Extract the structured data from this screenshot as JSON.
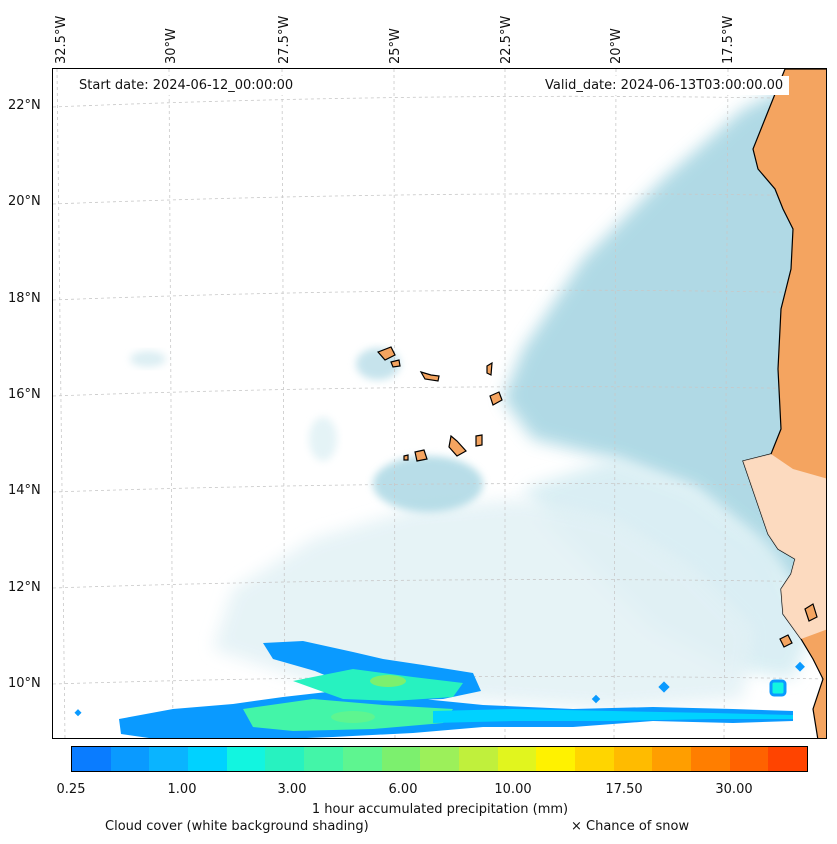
{
  "header": {
    "start_date": "Start date: 2024-06-12_00:00:00",
    "valid_date": "Valid_date: 2024-06-13T03:00:00.00"
  },
  "axes": {
    "longitude_labels": [
      "32.5°W",
      "30°W",
      "27.5°W",
      "25°W",
      "22.5°W",
      "20°W",
      "17.5°W"
    ],
    "latitude_labels": [
      "22°N",
      "20°N",
      "18°N",
      "16°N",
      "14°N",
      "12°N",
      "10°N"
    ]
  },
  "colorbar": {
    "label": "1 hour accumulated precipitation (mm)",
    "tick_labels": [
      "0.25",
      "1.00",
      "3.00",
      "6.00",
      "10.00",
      "17.50",
      "30.00"
    ],
    "colors": [
      "#0a7cff",
      "#0a9aff",
      "#0ab4ff",
      "#00d2ff",
      "#12f5e0",
      "#27f2c0",
      "#43f5a8",
      "#5ef590",
      "#7cf06e",
      "#9cf05a",
      "#c0f03c",
      "#e1f51e",
      "#fff200",
      "#ffd500",
      "#ffbb00",
      "#ff9e00",
      "#ff7e00",
      "#ff6200",
      "#ff4400"
    ]
  },
  "legend": {
    "cloud_cover": "Cloud cover (white background shading)",
    "snow": "× Chance of snow"
  },
  "colors": {
    "land": "#f4a460",
    "cloud": "#acd8e4",
    "frame": "#000000"
  }
}
